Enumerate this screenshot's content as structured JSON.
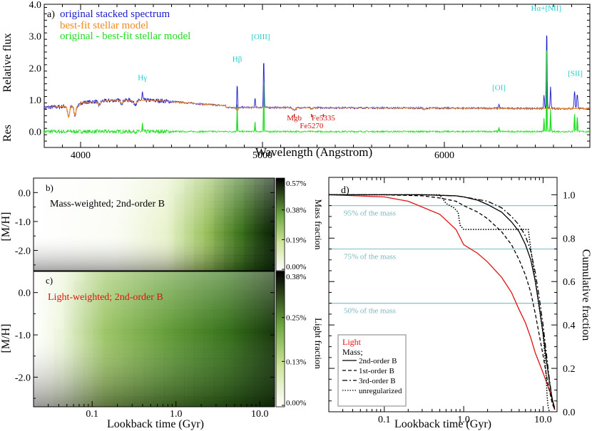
{
  "chart_data": [
    {
      "panel": "a",
      "type": "line",
      "panel_label": "a)",
      "legend": [
        {
          "label": "original stacked spectrum",
          "color": "#1a1acc"
        },
        {
          "label": "best-fit stellar model",
          "color": "#f08a1e"
        },
        {
          "label": "original - best-fit stellar model",
          "color": "#22dd22"
        }
      ],
      "xlabel": "Wavelength (Angstrom)",
      "ylabel": "Relative flux",
      "ylabel_res": "Res",
      "xlim": [
        3800,
        6800
      ],
      "ylim": [
        -0.5,
        4.0
      ],
      "xticks": [
        {
          "v": 4000,
          "label": "4000"
        },
        {
          "v": 5000,
          "label": "5000"
        },
        {
          "v": 6000,
          "label": "6000"
        }
      ],
      "yticks": [
        {
          "v": 0.0,
          "label": "0.0"
        },
        {
          "v": 1.0,
          "label": "1.0"
        },
        {
          "v": 2.0,
          "label": "2.0"
        },
        {
          "v": 3.0,
          "label": "3.0"
        },
        {
          "v": 4.0,
          "label": "4.0"
        }
      ],
      "emission_lines": [
        {
          "label": "Hγ",
          "x": 4340,
          "y": 1.62,
          "color": "#22cccc"
        },
        {
          "label": "Hβ",
          "x": 4861,
          "y": 2.2,
          "color": "#22cccc"
        },
        {
          "label": "[OIII]",
          "x": 4990,
          "y": 2.9,
          "color": "#22cccc"
        },
        {
          "label": "[OI]",
          "x": 6300,
          "y": 1.3,
          "color": "#22cccc"
        },
        {
          "label": "Hα+[NII]",
          "x": 6560,
          "y": 3.8,
          "color": "#22cccc"
        },
        {
          "label": "[SII]",
          "x": 6720,
          "y": 1.75,
          "color": "#22cccc"
        }
      ],
      "absorption_lines": [
        {
          "label": "Mgb",
          "x": 5175,
          "y": 0.35,
          "color": "#cc1111"
        },
        {
          "label": "Fe5270",
          "x": 5270,
          "y": 0.1,
          "color": "#cc1111"
        },
        {
          "label": "Fe5335",
          "x": 5335,
          "y": 0.35,
          "color": "#cc1111"
        }
      ]
    },
    {
      "panel": "b",
      "type": "heatmap",
      "panel_label": "b)",
      "title": "Mass-weighted; 2nd-order B",
      "title_color": "#000000",
      "ylabel": "[M/H]",
      "colorbar_label": "Mass fraction",
      "colorbar_ticks": [
        "0.57%",
        "0.38%",
        "0.19%",
        "0.00%"
      ],
      "yticks": [
        {
          "v": 0.0,
          "label": "0.0"
        },
        {
          "v": -1.0,
          "label": "-1.0"
        },
        {
          "v": -2.0,
          "label": "-2.0"
        }
      ],
      "ylim": [
        -2.7,
        0.5
      ],
      "xlim_gyr": [
        0.02,
        15
      ]
    },
    {
      "panel": "c",
      "type": "heatmap",
      "panel_label": "c)",
      "title": "Light-weighted; 2nd-order B",
      "title_color": "#e01010",
      "ylabel": "[M/H]",
      "xlabel": "Lookback time (Gyr)",
      "colorbar_label": "Light fraction",
      "colorbar_ticks": [
        "0.38%",
        "0.25%",
        "0.13%",
        "0.00%"
      ],
      "xticks": [
        {
          "v": 0.1,
          "label": "0.1"
        },
        {
          "v": 1.0,
          "label": "1.0"
        },
        {
          "v": 10.0,
          "label": "10.0"
        }
      ],
      "yticks": [
        {
          "v": 0.0,
          "label": "0.0"
        },
        {
          "v": -1.0,
          "label": "-1.0"
        },
        {
          "v": -2.0,
          "label": "-2.0"
        }
      ],
      "ylim": [
        -2.7,
        0.5
      ],
      "xlim_gyr": [
        0.02,
        15
      ]
    },
    {
      "panel": "d",
      "type": "line",
      "panel_label": "d)",
      "xlabel": "Lookback time (Gyr)",
      "ylabel": "Cumulative fraction",
      "xlim": [
        0.02,
        15
      ],
      "ylim": [
        0.0,
        1.08
      ],
      "xscale": "log",
      "xticks": [
        {
          "v": 0.1,
          "label": "0.1"
        },
        {
          "v": 1.0,
          "label": "1.0"
        },
        {
          "v": 10.0,
          "label": "10.0"
        }
      ],
      "yticks": [
        {
          "v": 0.0,
          "label": "0.0"
        },
        {
          "v": 0.2,
          "label": "0.2"
        },
        {
          "v": 0.4,
          "label": "0.4"
        },
        {
          "v": 0.6,
          "label": "0.6"
        },
        {
          "v": 0.8,
          "label": "0.8"
        },
        {
          "v": 1.0,
          "label": "1.0"
        }
      ],
      "reference_lines": [
        {
          "y": 0.95,
          "label": "95% of the mass"
        },
        {
          "y": 0.75,
          "label": "75% of the mass"
        },
        {
          "y": 0.5,
          "label": "50% of the mass"
        }
      ],
      "legend_header_light": "Light",
      "legend_header_mass": "Mass;",
      "series": [
        {
          "name": "Light",
          "style": "solid",
          "color": "#e01010",
          "x": [
            0.02,
            0.1,
            0.2,
            0.5,
            0.8,
            1.0,
            1.5,
            2.0,
            3.0,
            4.0,
            5.0,
            6.0,
            7.0,
            8.0,
            10.0,
            12.0,
            14.0
          ],
          "y": [
            1.0,
            0.99,
            0.97,
            0.91,
            0.84,
            0.77,
            0.73,
            0.69,
            0.62,
            0.55,
            0.47,
            0.41,
            0.34,
            0.27,
            0.18,
            0.1,
            0.02
          ]
        },
        {
          "name": "2nd-order B",
          "style": "solid",
          "color": "#000000",
          "x": [
            0.02,
            0.1,
            0.3,
            0.8,
            1.0,
            1.5,
            2.0,
            3.0,
            4.0,
            5.0,
            6.0,
            7.0,
            8.0,
            9.0,
            10.0,
            11.0,
            12.0,
            13.0,
            14.0
          ],
          "y": [
            1.0,
            1.0,
            1.0,
            0.995,
            0.99,
            0.975,
            0.955,
            0.92,
            0.875,
            0.83,
            0.77,
            0.7,
            0.6,
            0.48,
            0.36,
            0.24,
            0.14,
            0.06,
            0.01
          ]
        },
        {
          "name": "1st-order B",
          "style": "dashed",
          "color": "#000000",
          "x": [
            0.02,
            0.1,
            0.3,
            0.5,
            0.8,
            1.0,
            1.5,
            2.0,
            3.0,
            4.0,
            5.0,
            6.0,
            7.0,
            8.0,
            9.0,
            10.0,
            11.0,
            12.0,
            13.0,
            14.0
          ],
          "y": [
            1.0,
            1.0,
            0.995,
            0.985,
            0.97,
            0.95,
            0.92,
            0.89,
            0.83,
            0.77,
            0.7,
            0.63,
            0.55,
            0.45,
            0.35,
            0.26,
            0.17,
            0.1,
            0.04,
            0.01
          ]
        },
        {
          "name": "3rd-order B",
          "style": "dashdot",
          "color": "#000000",
          "x": [
            0.02,
            0.1,
            0.3,
            0.8,
            1.0,
            2.0,
            3.0,
            4.0,
            5.0,
            6.0,
            7.0,
            8.0,
            9.0,
            10.0,
            11.0,
            12.0,
            13.0,
            14.0
          ],
          "y": [
            1.0,
            1.0,
            1.0,
            0.995,
            0.99,
            0.97,
            0.94,
            0.9,
            0.86,
            0.81,
            0.74,
            0.64,
            0.52,
            0.4,
            0.27,
            0.15,
            0.06,
            0.01
          ]
        },
        {
          "name": "unregularized",
          "style": "dotted",
          "color": "#000000",
          "x": [
            0.02,
            0.5,
            0.6,
            0.75,
            0.85,
            0.9,
            1.0,
            3.0,
            6.5,
            7.0,
            8.0,
            10.0,
            10.5,
            11.0,
            11.2,
            11.5,
            12.0
          ],
          "y": [
            1.0,
            1.0,
            0.96,
            0.94,
            0.92,
            0.86,
            0.84,
            0.84,
            0.84,
            0.75,
            0.6,
            0.36,
            0.26,
            0.15,
            0.08,
            0.03,
            0.0
          ]
        }
      ]
    }
  ]
}
